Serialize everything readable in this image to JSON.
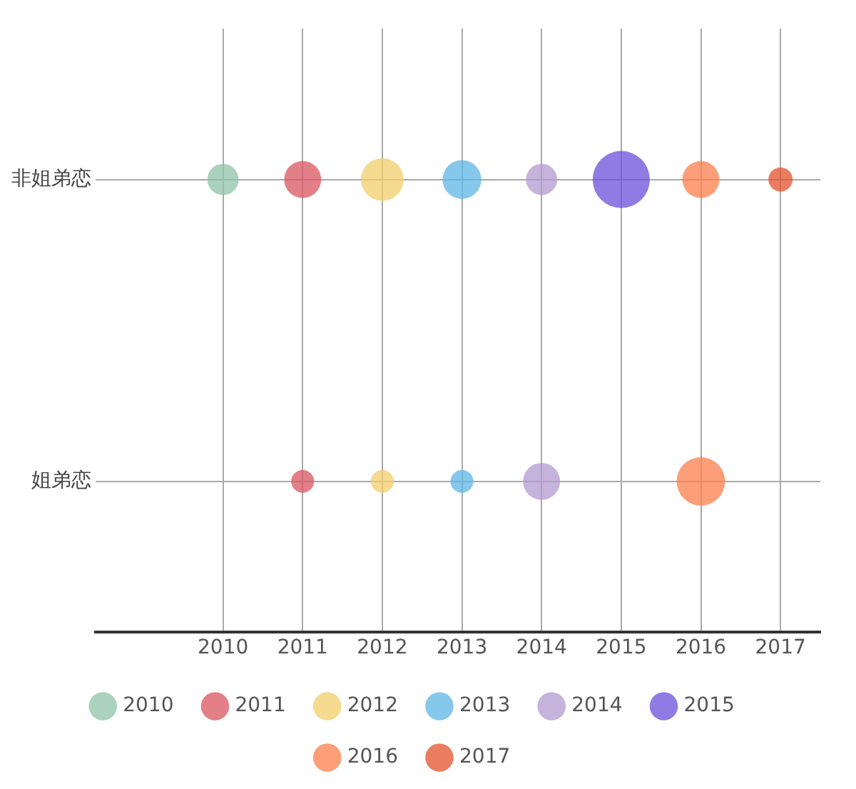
{
  "chart_data": {
    "type": "bubble",
    "orientation": "horizontal",
    "categories": [
      "非姐弟恋",
      "姐弟恋"
    ],
    "xlim": [
      2008.4,
      2017.5
    ],
    "xticks": [
      2010,
      2011,
      2012,
      2013,
      2014,
      2015,
      2016,
      2017
    ],
    "grid": true,
    "legend": "bottom",
    "series": [
      {
        "name": "2010",
        "color": "#8dc3a7",
        "values": [
          2010,
          null
        ],
        "sizes": [
          0.3,
          null
        ]
      },
      {
        "name": "2011",
        "color": "#d9545d",
        "values": [
          2011,
          2011
        ],
        "sizes": [
          0.42,
          0.16
        ]
      },
      {
        "name": "2012",
        "color": "#f1cd6a",
        "values": [
          2012,
          2012
        ],
        "sizes": [
          0.56,
          0.16
        ]
      },
      {
        "name": "2013",
        "color": "#5db4e6",
        "values": [
          2013,
          2013
        ],
        "sizes": [
          0.46,
          0.16
        ]
      },
      {
        "name": "2014",
        "color": "#b39ad0",
        "values": [
          2014,
          2014
        ],
        "sizes": [
          0.3,
          0.42
        ]
      },
      {
        "name": "2015",
        "color": "#6b4fdc",
        "values": [
          2015,
          null
        ],
        "sizes": [
          1,
          null
        ]
      },
      {
        "name": "2016",
        "color": "#fb7d4a",
        "values": [
          2016,
          2016
        ],
        "sizes": [
          0.42,
          0.72
        ]
      },
      {
        "name": "2017",
        "color": "#e3522a",
        "values": [
          2017,
          null
        ],
        "sizes": [
          0.18,
          null
        ]
      }
    ]
  }
}
